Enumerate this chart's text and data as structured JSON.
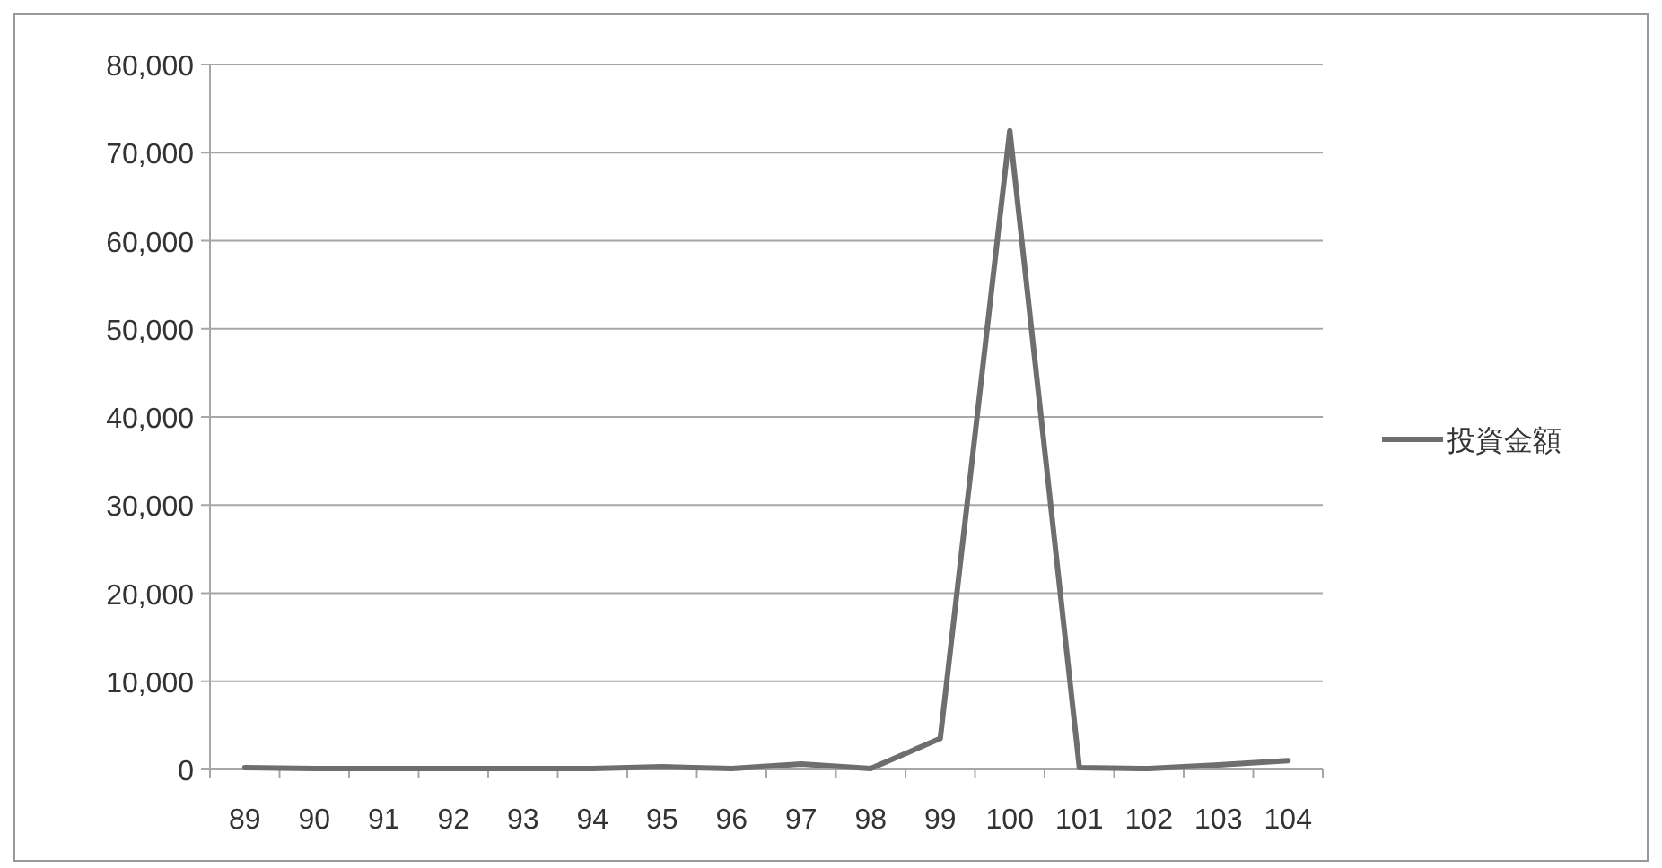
{
  "chart_data": {
    "type": "line",
    "categories": [
      "89",
      "90",
      "91",
      "92",
      "93",
      "94",
      "95",
      "96",
      "97",
      "98",
      "99",
      "100",
      "101",
      "102",
      "103",
      "104"
    ],
    "series": [
      {
        "name": "投資金額",
        "color": "#6e6e6e",
        "values": [
          200,
          100,
          100,
          100,
          100,
          100,
          300,
          100,
          600,
          100,
          3500,
          72500,
          200,
          100,
          500,
          1000
        ]
      }
    ],
    "ylim": [
      0,
      80000
    ],
    "yticks": [
      {
        "value": 0,
        "label": "0"
      },
      {
        "value": 10000,
        "label": "10,000"
      },
      {
        "value": 20000,
        "label": "20,000"
      },
      {
        "value": 30000,
        "label": "30,000"
      },
      {
        "value": 40000,
        "label": "40,000"
      },
      {
        "value": 50000,
        "label": "50,000"
      },
      {
        "value": 60000,
        "label": "60,000"
      },
      {
        "value": 70000,
        "label": "70,000"
      },
      {
        "value": 80000,
        "label": "80,000"
      }
    ],
    "grid": "y",
    "legend": "right",
    "marker": "none",
    "line_style": "solid"
  }
}
